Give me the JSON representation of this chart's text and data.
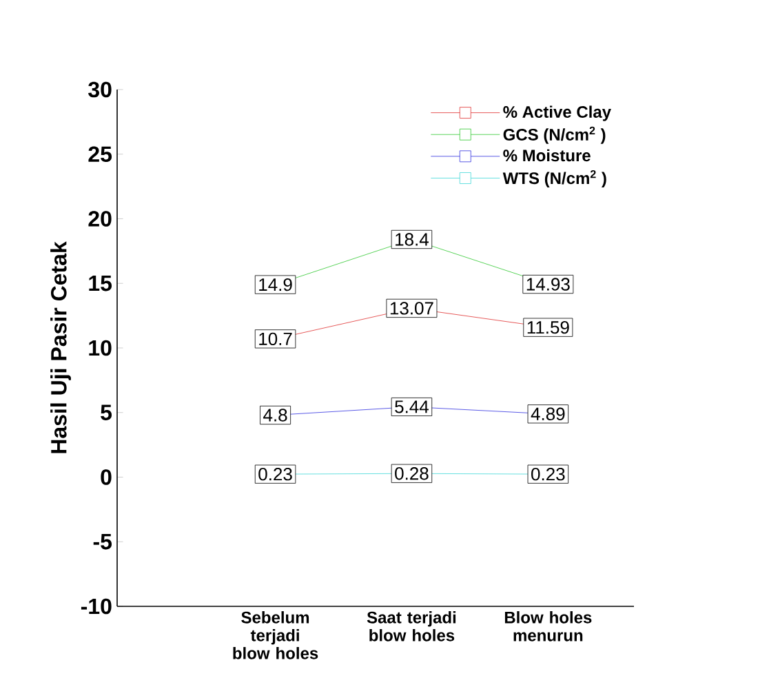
{
  "chart_data": {
    "type": "line",
    "ylabel": "Hasil Uji Pasir Cetak",
    "categories": [
      "Sebelum terjadi blow holes",
      "Saat terjadi blow holes",
      "Blow holes menurun"
    ],
    "series": [
      {
        "name": "% Active Clay",
        "color": "#e03030",
        "values": [
          10.7,
          13.07,
          11.59
        ],
        "value_labels": [
          "10.7",
          "13.07",
          "11.59"
        ]
      },
      {
        "name": "GCS (N/cm$^{2}$ )",
        "color": "#30c830",
        "values": [
          14.9,
          18.4,
          14.93
        ],
        "value_labels": [
          "14.9",
          "18.4",
          "14.93"
        ]
      },
      {
        "name": "% Moisture",
        "color": "#3030e0",
        "values": [
          4.8,
          5.44,
          4.89
        ],
        "value_labels": [
          "4.8",
          "5.44",
          "4.89"
        ]
      },
      {
        "name": "WTS (N/cm$^{2}$ )",
        "color": "#40d8d8",
        "values": [
          0.23,
          0.28,
          0.23
        ],
        "value_labels": [
          "0.23",
          "0.28",
          "0.23"
        ]
      }
    ],
    "ylim": [
      -10,
      30
    ],
    "yticks": [
      -10,
      -5,
      0,
      5,
      10,
      15,
      20,
      25,
      30
    ],
    "legend": "top right",
    "grid": false,
    "marker": "square"
  }
}
